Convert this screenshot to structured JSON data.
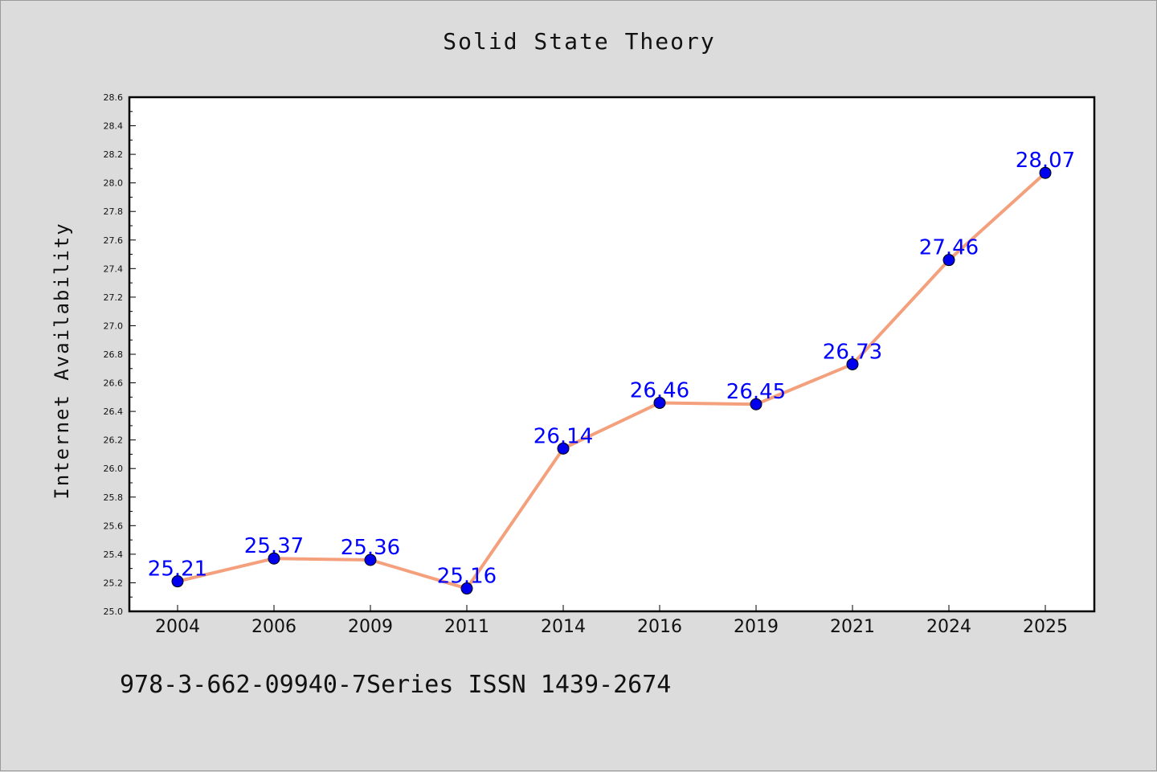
{
  "chart_data": {
    "type": "line",
    "title": "Solid State Theory",
    "xlabel": "",
    "ylabel": "Internet Availability",
    "categories": [
      "2004",
      "2006",
      "2009",
      "2011",
      "2014",
      "2016",
      "2019",
      "2021",
      "2024",
      "2025"
    ],
    "series": [
      {
        "values": [
          25.21,
          25.37,
          25.36,
          25.16,
          26.14,
          26.46,
          26.45,
          26.73,
          27.46,
          28.07
        ],
        "data_labels": [
          "25.21",
          "25.37",
          "25.36",
          "25.16",
          "26.14",
          "26.46",
          "26.45",
          "26.73",
          "27.46",
          "28.07"
        ],
        "line_color": "#f4a07c",
        "marker_color": "#0000ee"
      }
    ],
    "ylim": [
      25.0,
      28.6
    ],
    "yticks": [
      "25.0",
      "25.2",
      "25.4",
      "25.6",
      "25.8",
      "26.0",
      "26.2",
      "26.4",
      "26.6",
      "26.8",
      "27.0",
      "27.2",
      "27.4",
      "27.6",
      "27.8",
      "28.0",
      "28.2",
      "28.4",
      "28.6"
    ],
    "grid": false,
    "legend": "none",
    "label_color": "#0000ff"
  },
  "footer": {
    "text": "978-3-662-09940-7Series ISSN 1439-2674"
  }
}
